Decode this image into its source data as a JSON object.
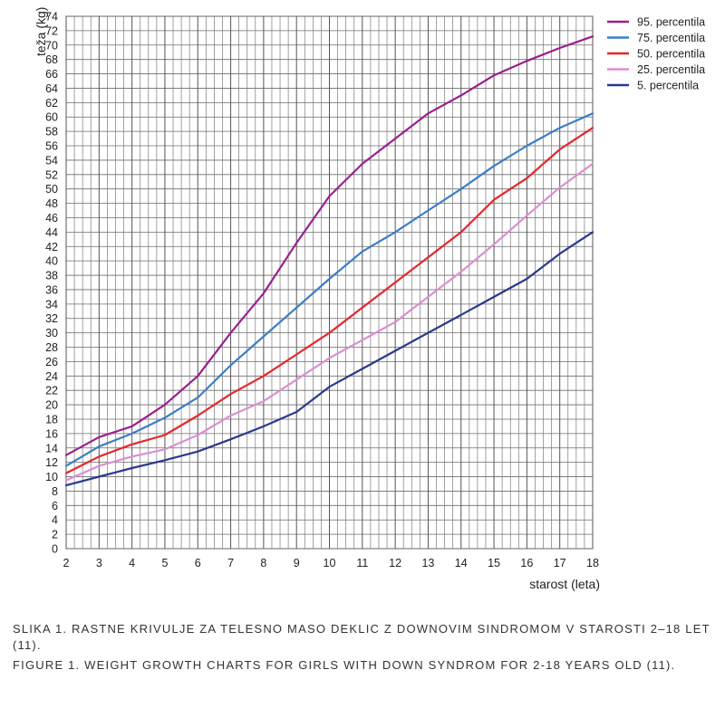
{
  "chart_data": {
    "type": "line",
    "xlabel": "starost (leta)",
    "ylabel": "teža (kg)",
    "xlim": [
      2,
      18
    ],
    "ylim": [
      0,
      74
    ],
    "x_ticks": [
      "2",
      "3",
      "4",
      "5",
      "6",
      "7",
      "8",
      "9",
      "10",
      "11",
      "12",
      "13",
      "14",
      "15",
      "16",
      "17",
      "18"
    ],
    "y_ticks": [
      "0",
      "2",
      "4",
      "6",
      "8",
      "10",
      "12",
      "14",
      "16",
      "18",
      "20",
      "22",
      "24",
      "26",
      "28",
      "30",
      "32",
      "34",
      "36",
      "38",
      "40",
      "42",
      "44",
      "46",
      "48",
      "50",
      "52",
      "54",
      "56",
      "58",
      "60",
      "62",
      "64",
      "66",
      "68",
      "70",
      "72",
      "74"
    ],
    "grid": true,
    "legend_position": "top-right",
    "x": [
      2,
      3,
      4,
      5,
      6,
      7,
      8,
      9,
      10,
      11,
      12,
      13,
      14,
      15,
      16,
      17,
      18
    ],
    "series": [
      {
        "name": "95. percentila",
        "color": "#9b1f8e",
        "values": [
          13.0,
          15.5,
          17.0,
          20.0,
          24.0,
          30.0,
          35.5,
          42.5,
          49.0,
          53.5,
          57.0,
          60.5,
          63.0,
          65.8,
          67.8,
          69.6,
          71.2
        ]
      },
      {
        "name": "75. percentila",
        "color": "#3c7dc6",
        "values": [
          11.5,
          14.2,
          16.0,
          18.2,
          21.0,
          25.5,
          29.5,
          33.5,
          37.5,
          41.3,
          44.0,
          47.0,
          50.0,
          53.2,
          56.0,
          58.5,
          60.5
        ]
      },
      {
        "name": "50. percentila",
        "color": "#e8262c",
        "values": [
          10.5,
          12.8,
          14.5,
          15.8,
          18.5,
          21.5,
          24.0,
          27.0,
          30.0,
          33.5,
          37.0,
          40.5,
          44.0,
          48.5,
          51.5,
          55.5,
          58.5
        ]
      },
      {
        "name": "25. percentila",
        "color": "#dc8ed2",
        "values": [
          9.5,
          11.5,
          12.8,
          13.8,
          15.8,
          18.5,
          20.5,
          23.5,
          26.5,
          29.0,
          31.5,
          35.0,
          38.5,
          42.3,
          46.3,
          50.2,
          53.5
        ]
      },
      {
        "name": "5. percentila",
        "color": "#2a3a8c",
        "values": [
          8.8,
          10.0,
          11.2,
          12.3,
          13.5,
          15.2,
          17.0,
          19.0,
          22.5,
          25.0,
          27.5,
          30.0,
          32.5,
          35.0,
          37.5,
          41.0,
          44.0
        ]
      }
    ]
  },
  "caption": {
    "slovenian": "SLIKA 1. RASTNE KRIVULJE ZA TELESNO MASO DEKLIC Z DOWNOVIM SINDROMOM V STAROSTI 2–18 LET (11).",
    "english": "FIGURE 1. WEIGHT GROWTH CHARTS FOR GIRLS WITH DOWN SYNDROM FOR 2-18 YEARS OLD (11)."
  }
}
